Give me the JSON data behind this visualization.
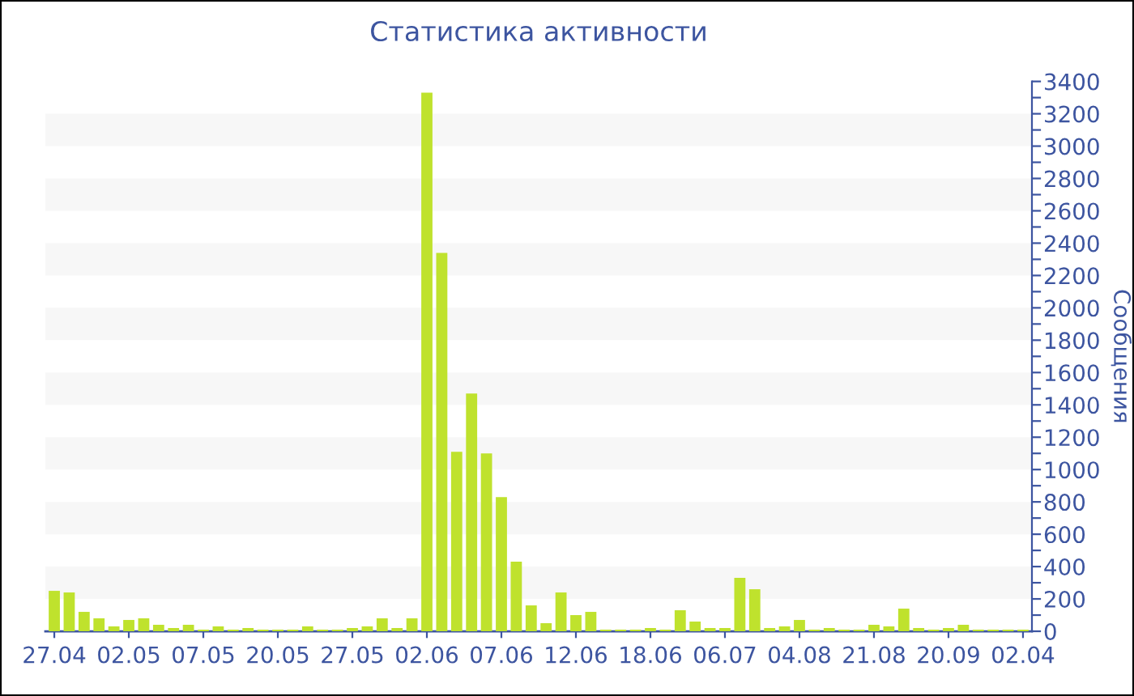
{
  "chart_data": {
    "type": "bar",
    "title": "Статистика активности",
    "ylabel": "Сообщения",
    "categories": [
      "27.04",
      null,
      null,
      null,
      null,
      "02.05",
      null,
      null,
      null,
      null,
      "07.05",
      null,
      null,
      null,
      null,
      "20.05",
      null,
      null,
      null,
      null,
      "27.05",
      null,
      null,
      null,
      null,
      "02.06",
      null,
      null,
      null,
      null,
      "07.06",
      null,
      null,
      null,
      null,
      "12.06",
      null,
      null,
      null,
      null,
      "18.06",
      null,
      null,
      null,
      null,
      "06.07",
      null,
      null,
      null,
      null,
      "04.08",
      null,
      null,
      null,
      null,
      "21.08",
      null,
      null,
      null,
      null,
      "20.09",
      null,
      null,
      null,
      null,
      "02.04"
    ],
    "values": [
      250,
      240,
      120,
      80,
      30,
      70,
      80,
      40,
      20,
      40,
      10,
      30,
      10,
      20,
      10,
      10,
      10,
      30,
      10,
      10,
      20,
      30,
      80,
      20,
      80,
      3330,
      2340,
      1110,
      1470,
      1100,
      830,
      430,
      160,
      50,
      240,
      100,
      120,
      10,
      10,
      10,
      20,
      10,
      130,
      60,
      20,
      20,
      330,
      260,
      20,
      30,
      70,
      10,
      20,
      10,
      10,
      40,
      30,
      140,
      20,
      10,
      20,
      40,
      10,
      10,
      10,
      10
    ],
    "color": "#bfe22d",
    "ylim": [
      0,
      3400
    ],
    "yticks": [
      0,
      {
        "value": 100,
        "label": null
      },
      200,
      {
        "value": 300,
        "label": null
      },
      400,
      {
        "value": 500,
        "label": null
      },
      600,
      {
        "value": 700,
        "label": null
      },
      800,
      {
        "value": 900,
        "label": null
      },
      1000,
      {
        "value": 1100,
        "label": null
      },
      1200,
      {
        "value": 1300,
        "label": null
      },
      1400,
      {
        "value": 1500,
        "label": null
      },
      1600,
      {
        "value": 1700,
        "label": null
      },
      1800,
      {
        "value": 1900,
        "label": null
      },
      2000,
      {
        "value": 2100,
        "label": null
      },
      2200,
      {
        "value": 2300,
        "label": null
      },
      2400,
      {
        "value": 2500,
        "label": null
      },
      2600,
      {
        "value": 2700,
        "label": null
      },
      2800,
      {
        "value": 2900,
        "label": null
      },
      3000,
      {
        "value": 3100,
        "label": null
      },
      3200,
      {
        "value": 3300,
        "label": null
      },
      3400
    ],
    "bands": [
      {
        "axis": "y",
        "from": 200,
        "to": 400,
        "color": "#f7f7f7"
      },
      {
        "axis": "y",
        "from": 600,
        "to": 800,
        "color": "#f7f7f7"
      },
      {
        "axis": "y",
        "from": 1000,
        "to": 1200,
        "color": "#f7f7f7"
      },
      {
        "axis": "y",
        "from": 1400,
        "to": 1600,
        "color": "#f7f7f7"
      },
      {
        "axis": "y",
        "from": 1800,
        "to": 2000,
        "color": "#f7f7f7"
      },
      {
        "axis": "y",
        "from": 2200,
        "to": 2400,
        "color": "#f7f7f7"
      },
      {
        "axis": "y",
        "from": 2600,
        "to": 2800,
        "color": "#f7f7f7"
      },
      {
        "axis": "y",
        "from": 3000,
        "to": 3200,
        "color": "#f7f7f7"
      }
    ],
    "legend": false
  }
}
